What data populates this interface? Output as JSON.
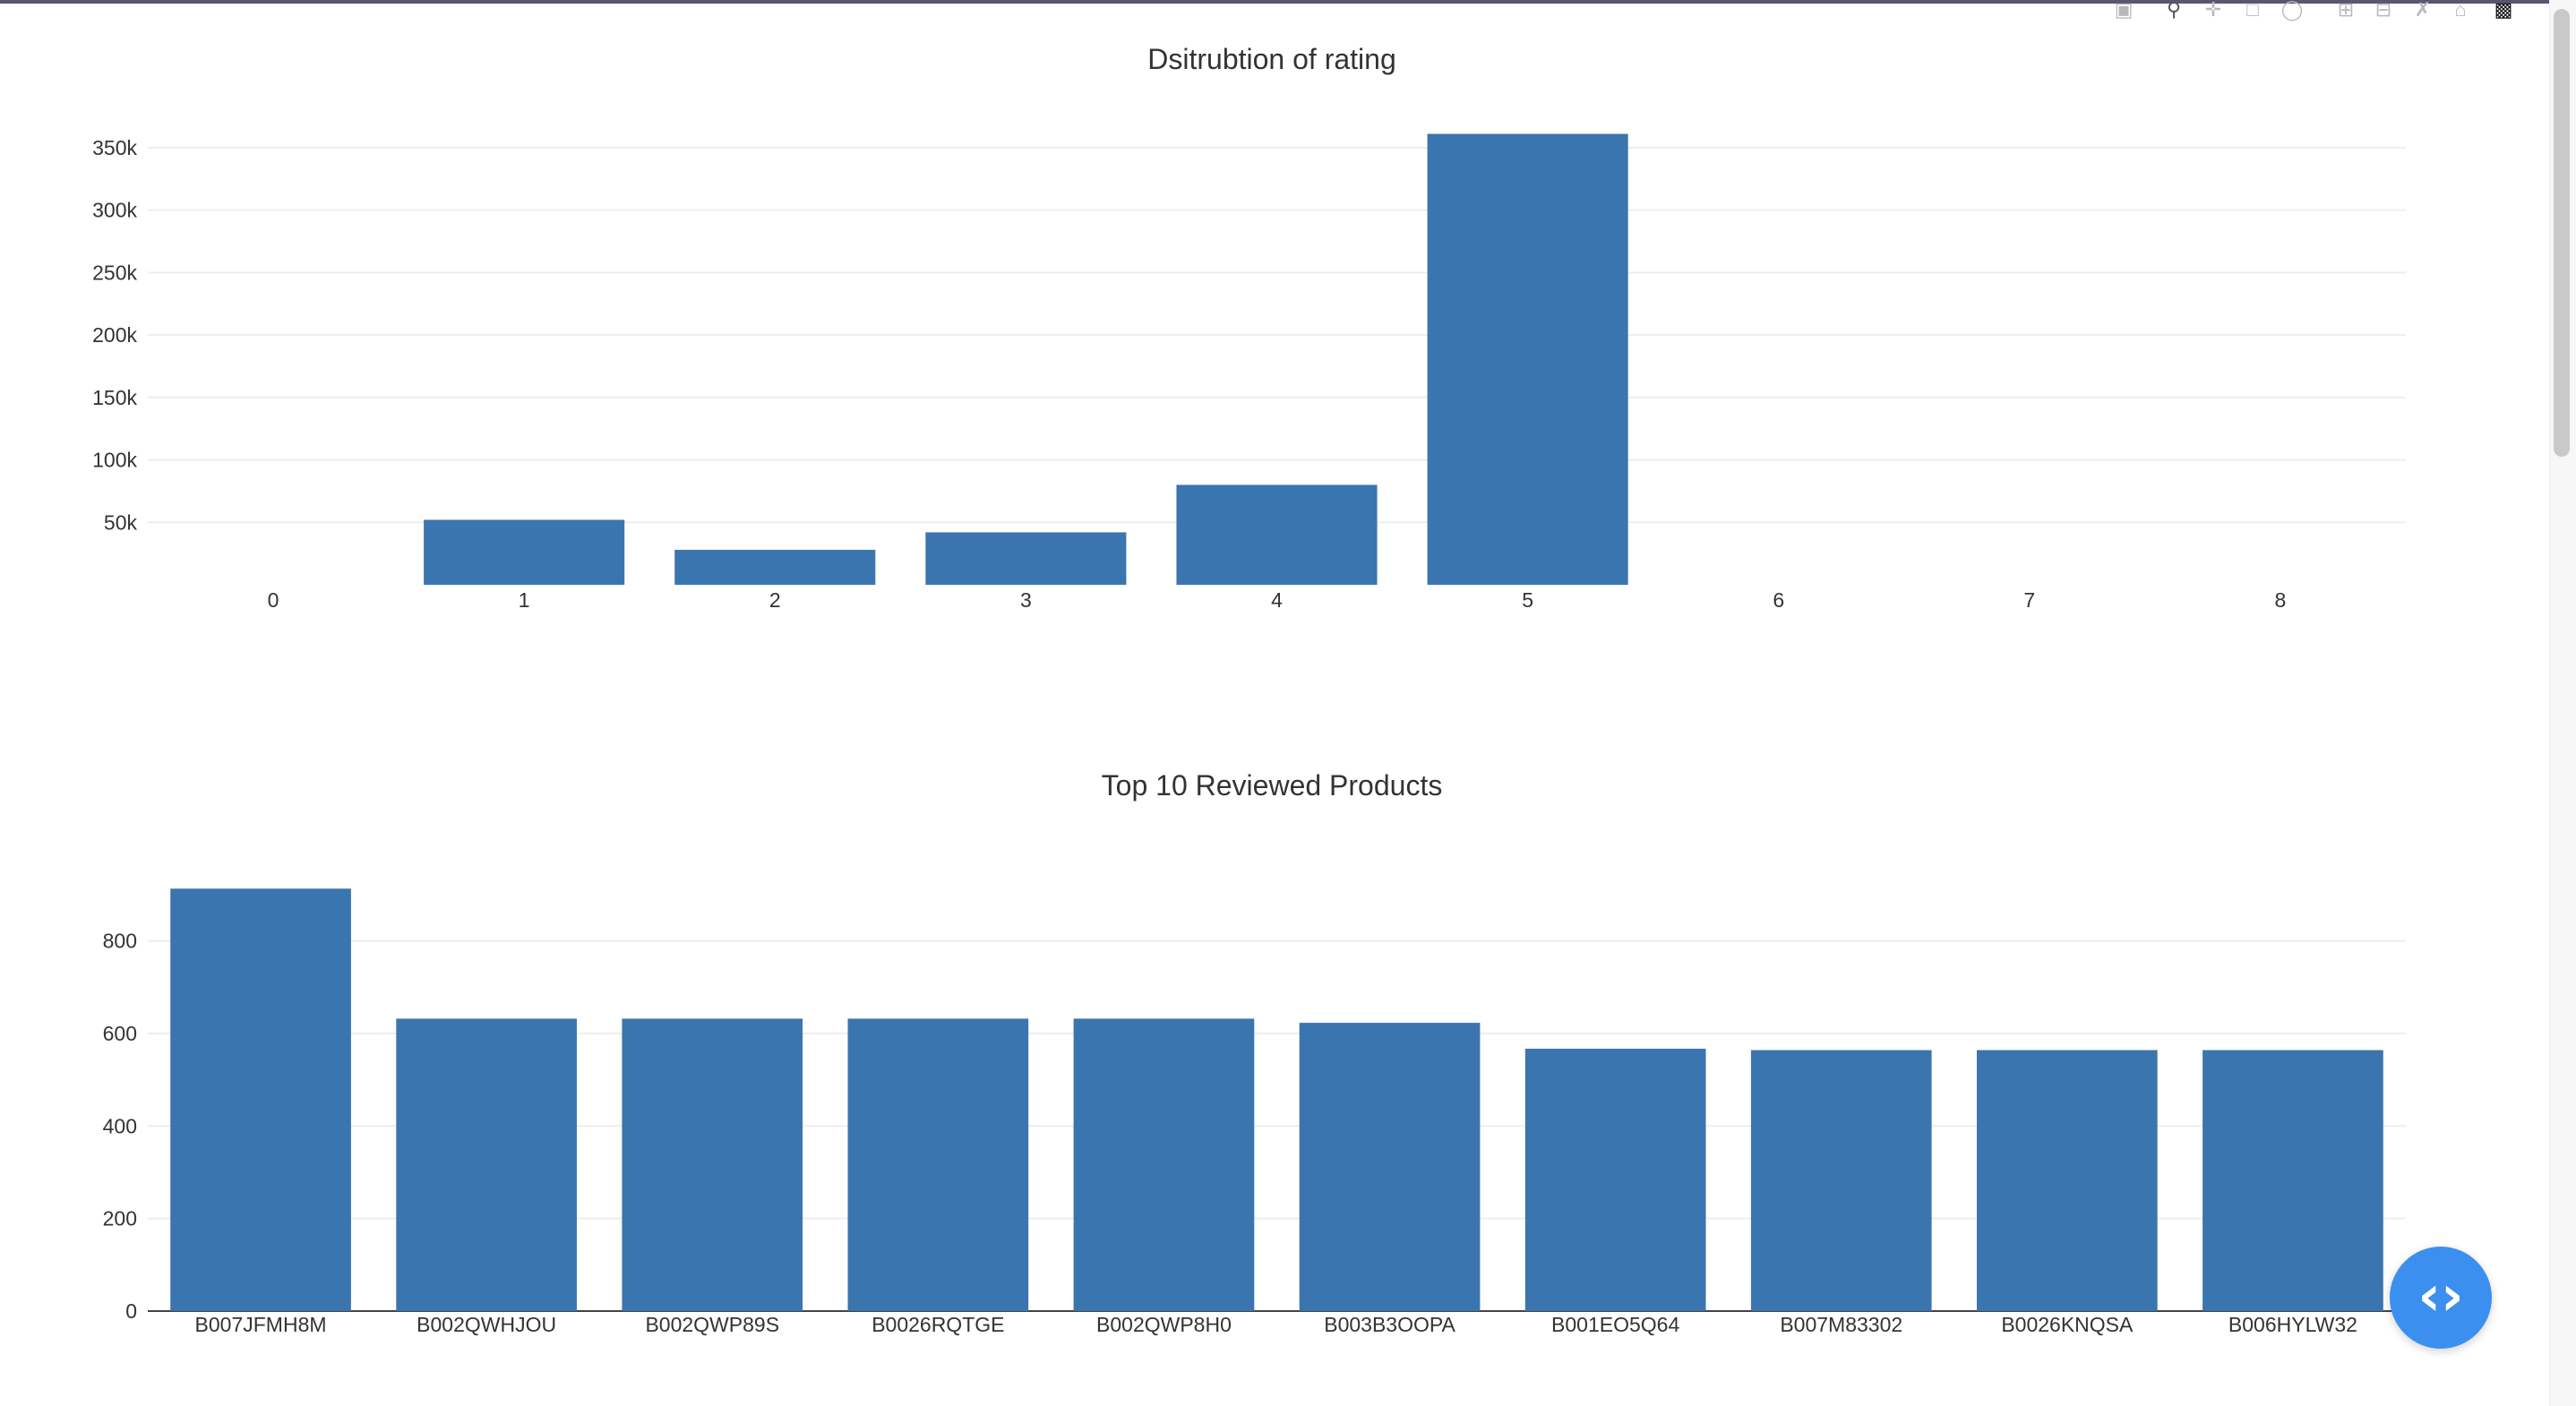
{
  "modebar": {
    "icons": [
      "camera-icon",
      "zoom-icon",
      "pan-icon",
      "box-select-icon",
      "lasso-icon",
      "zoom-in-icon",
      "zoom-out-icon",
      "autoscale-icon",
      "reset-axes-icon",
      "plotly-logo-icon"
    ]
  },
  "fab": {
    "icon": "code-brackets-icon",
    "label": "‹›"
  },
  "chart_data": [
    {
      "type": "bar",
      "title": "Dsitrubtion of rating",
      "xlabel": "",
      "ylabel": "",
      "categories": [
        "0",
        "1",
        "2",
        "3",
        "4",
        "5",
        "6",
        "7",
        "8"
      ],
      "values": [
        0,
        52000,
        28000,
        42000,
        80000,
        361000,
        0,
        0,
        0
      ],
      "ylim": [
        0,
        380000
      ],
      "yticks": [
        50000,
        100000,
        150000,
        200000,
        250000,
        300000,
        350000
      ],
      "ytick_labels": [
        "50k",
        "100k",
        "150k",
        "200k",
        "250k",
        "300k",
        "350k"
      ],
      "grid": true,
      "color": "#3b75af"
    },
    {
      "type": "bar",
      "title": "Top 10 Reviewed Products",
      "xlabel": "",
      "ylabel": "",
      "categories": [
        "B007JFMH8M",
        "B002QWHJOU",
        "B002QWP89S",
        "B0026RQTGE",
        "B002QWP8H0",
        "B003B3OOPA",
        "B001EO5Q64",
        "B007M83302",
        "B0026KNQSA",
        "B006HYLW32"
      ],
      "values": [
        913,
        632,
        632,
        632,
        632,
        623,
        567,
        564,
        564,
        564
      ],
      "ylim": [
        0,
        960
      ],
      "yticks": [
        0,
        200,
        400,
        600,
        800
      ],
      "ytick_labels": [
        "0",
        "200",
        "400",
        "600",
        "800"
      ],
      "grid": true,
      "color": "#3b75af"
    }
  ]
}
